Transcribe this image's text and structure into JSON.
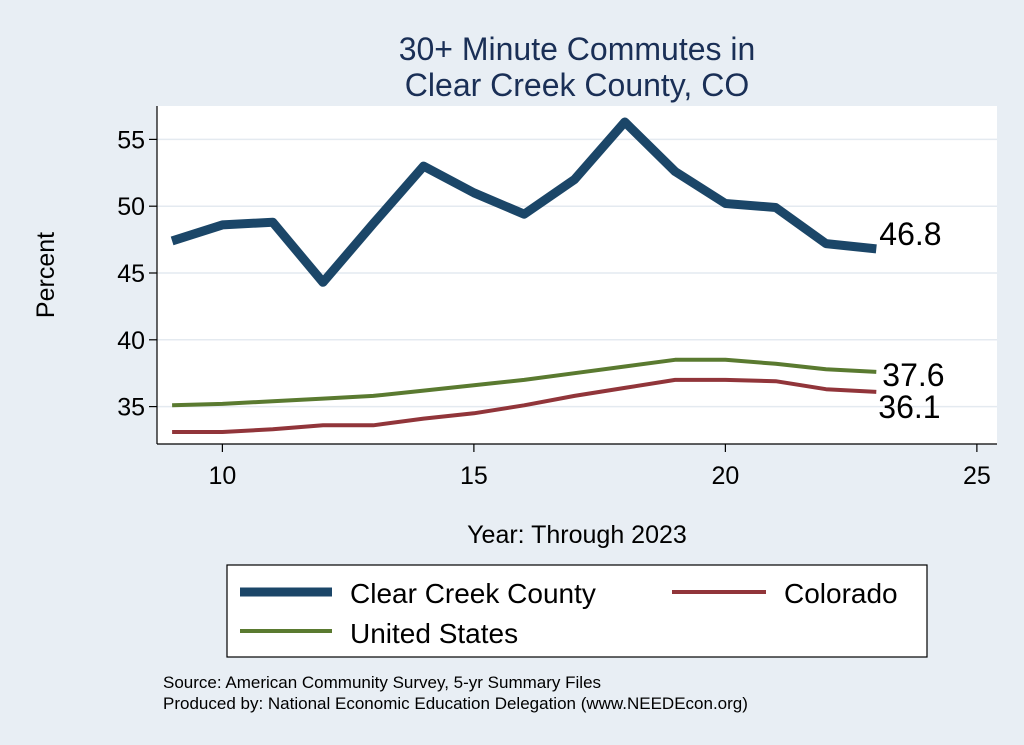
{
  "chart_data": {
    "type": "line",
    "title": [
      "30+ Minute Commutes in",
      "Clear Creek County, CO"
    ],
    "xlabel": "Year: Through 2023",
    "ylabel": "Percent",
    "xlim": [
      8.7,
      25.4
    ],
    "ylim": [
      32.2,
      57.5
    ],
    "xticks": [
      10,
      15,
      20,
      25
    ],
    "yticks": [
      35,
      40,
      45,
      50,
      55
    ],
    "grid": true,
    "x": [
      9,
      10,
      11,
      12,
      13,
      14,
      15,
      16,
      17,
      18,
      19,
      20,
      21,
      22,
      23
    ],
    "series": [
      {
        "name": "Clear Creek County",
        "color": "#1b4668",
        "width": 9,
        "end_label": "46.8",
        "values": [
          47.4,
          48.6,
          48.8,
          44.3,
          48.7,
          53.0,
          51.0,
          49.4,
          52.0,
          56.3,
          52.6,
          50.2,
          49.9,
          47.2,
          46.8
        ]
      },
      {
        "name": "Colorado",
        "color": "#91353a",
        "width": 4,
        "end_label": "36.1",
        "values": [
          33.1,
          33.1,
          33.3,
          33.6,
          33.6,
          34.1,
          34.5,
          35.1,
          35.8,
          36.4,
          37.0,
          37.0,
          36.9,
          36.3,
          36.1
        ]
      },
      {
        "name": "United States",
        "color": "#5a7a30",
        "width": 4,
        "end_label": "37.6",
        "values": [
          35.1,
          35.2,
          35.4,
          35.6,
          35.8,
          36.2,
          36.6,
          37.0,
          37.5,
          38.0,
          38.5,
          38.5,
          38.2,
          37.8,
          37.6
        ]
      }
    ],
    "legend": {
      "position": "bottom",
      "entries": [
        "Clear Creek County",
        "Colorado",
        "United States"
      ]
    },
    "notes": [
      "Source: American Community Survey, 5-yr Summary Files",
      "Produced by: National Economic Education Delegation (www.NEEDEcon.org)"
    ]
  }
}
